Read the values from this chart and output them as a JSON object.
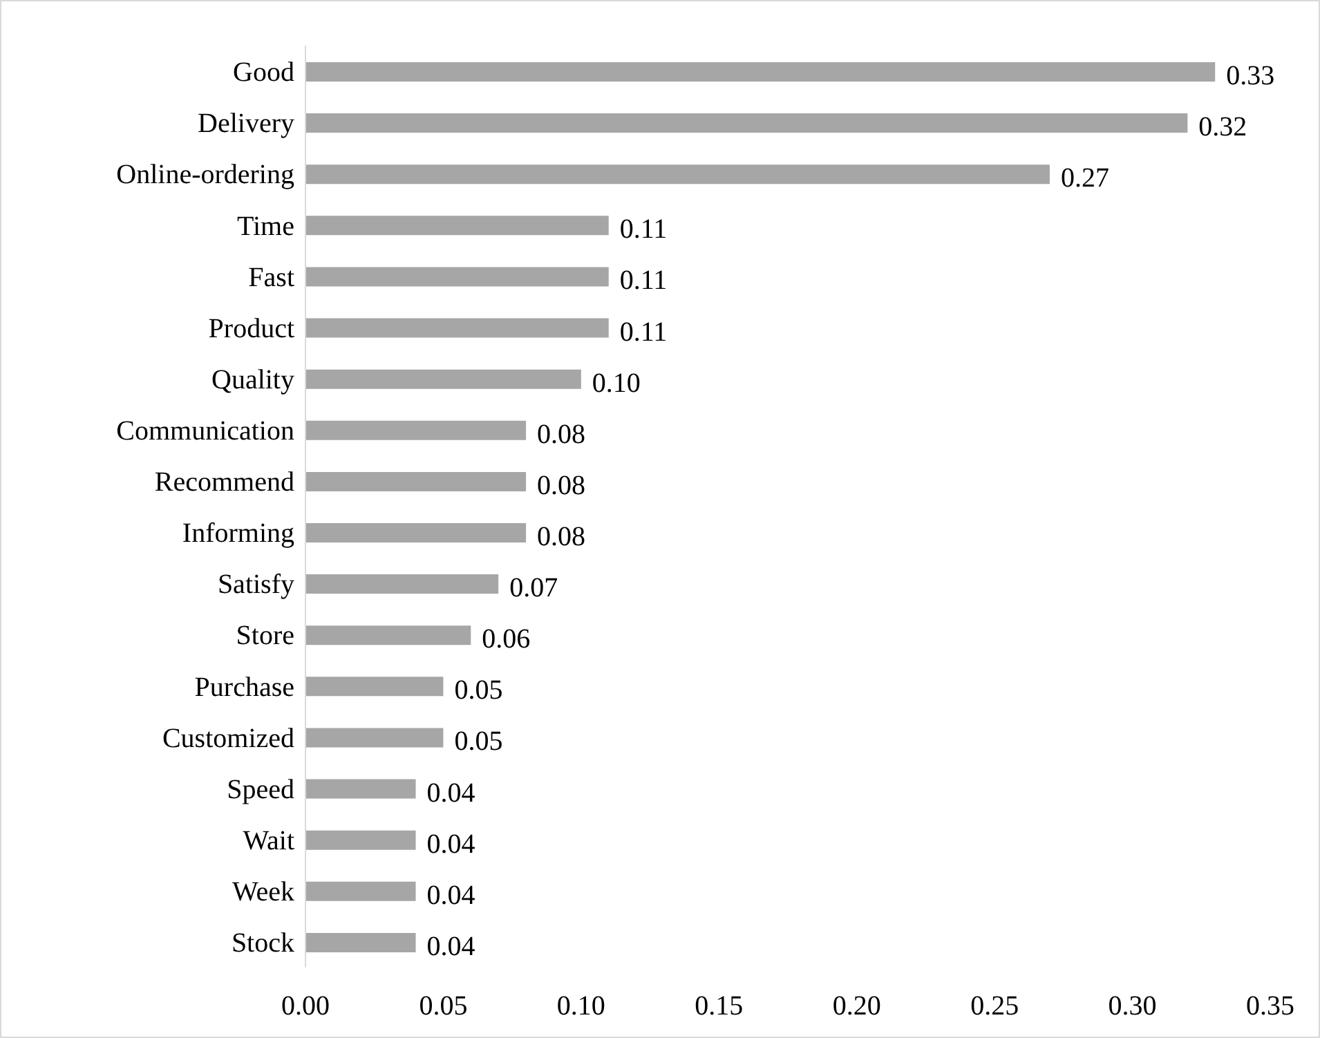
{
  "chart_data": {
    "type": "bar",
    "orientation": "horizontal",
    "categories": [
      "Good",
      "Delivery",
      "Online-ordering",
      "Time",
      "Fast",
      "Product",
      "Quality",
      "Communication",
      "Recommend",
      "Informing",
      "Satisfy",
      "Store",
      "Purchase",
      "Customized",
      "Speed",
      "Wait",
      "Week",
      "Stock"
    ],
    "values": [
      0.33,
      0.32,
      0.27,
      0.11,
      0.11,
      0.11,
      0.1,
      0.08,
      0.08,
      0.08,
      0.07,
      0.06,
      0.05,
      0.05,
      0.04,
      0.04,
      0.04,
      0.04
    ],
    "value_labels": [
      "0.33",
      "0.32",
      "0.27",
      "0.11",
      "0.11",
      "0.11",
      "0.10",
      "0.08",
      "0.08",
      "0.08",
      "0.07",
      "0.06",
      "0.05",
      "0.05",
      "0.04",
      "0.04",
      "0.04",
      "0.04"
    ],
    "color": "#a6a6a6",
    "xlim": [
      0,
      0.35
    ],
    "xticks": [
      {
        "value": 0,
        "label": "0.00"
      },
      {
        "value": 0.05,
        "label": "0.05"
      },
      {
        "value": 0.1,
        "label": "0.10"
      },
      {
        "value": 0.15,
        "label": "0.15"
      },
      {
        "value": 0.2,
        "label": "0.20"
      },
      {
        "value": 0.25,
        "label": "0.25"
      },
      {
        "value": 0.3,
        "label": "0.30"
      },
      {
        "value": 0.35,
        "label": "0.35"
      }
    ],
    "grid": false,
    "legend": false
  }
}
